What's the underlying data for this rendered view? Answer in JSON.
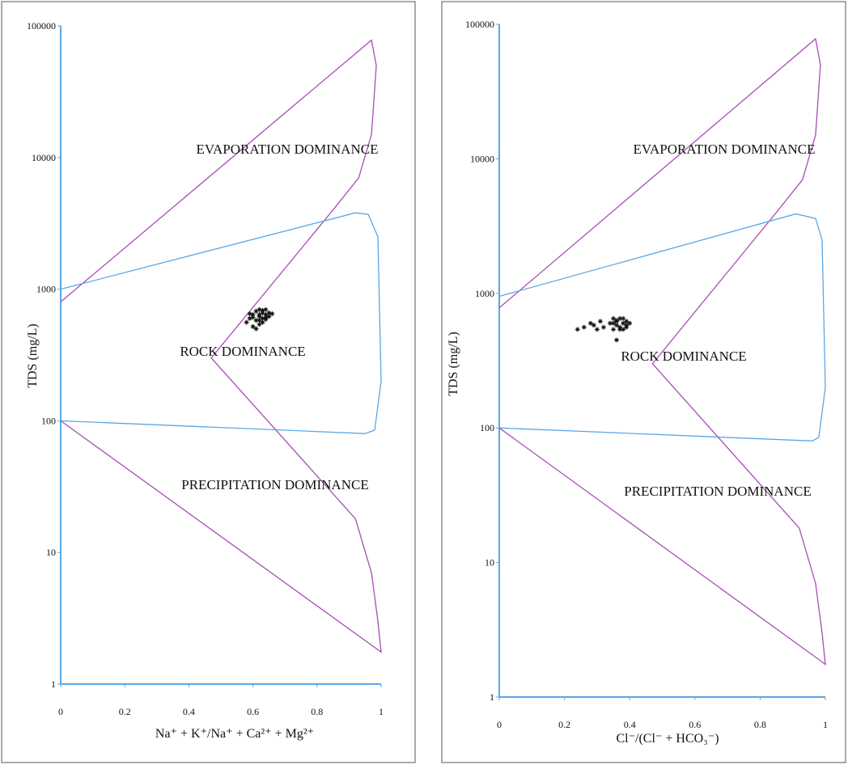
{
  "chart_data": [
    {
      "type": "scatter",
      "log_y": true,
      "y_label": "TDS (mg/L)",
      "x_label": "Na⁺ + K⁺/Na⁺ + Ca²⁺ + Mg²⁺",
      "annotations": [
        "EVAPORATION DOMINANCE",
        "ROCK DOMINANCE",
        "PRECIPITATION DOMINANCE"
      ],
      "xlim": [
        0,
        1
      ],
      "xticks": [
        0,
        0.2,
        0.4,
        0.6,
        0.8,
        1
      ],
      "ylim": [
        1,
        100000
      ],
      "yticks": [
        1,
        10,
        100,
        1000,
        10000,
        100000
      ],
      "axis_color": "#5aa7e6",
      "points": {
        "color": "#111111",
        "x": [
          0.58,
          0.59,
          0.6,
          0.6,
          0.61,
          0.61,
          0.62,
          0.62,
          0.62,
          0.63,
          0.63,
          0.63,
          0.64,
          0.64,
          0.64,
          0.65,
          0.65,
          0.66,
          0.6,
          0.61,
          0.62,
          0.63,
          0.59,
          0.62,
          0.64
        ],
        "values": [
          560,
          600,
          520,
          640,
          580,
          680,
          620,
          540,
          700,
          600,
          660,
          560,
          640,
          590,
          700,
          620,
          660,
          650,
          610,
          500,
          580,
          690,
          650,
          640,
          610
        ]
      },
      "boundaries": [
        {
          "color": "#a64db4",
          "x": [
            0,
            0.97,
            0.985,
            0.97,
            0.93,
            0.85,
            0.47,
            0.92,
            0.97,
            0.99,
            1,
            0
          ],
          "values": [
            800,
            78000,
            50000,
            15000,
            7000,
            4000,
            300,
            18,
            7,
            3,
            1.75,
            100
          ]
        },
        {
          "color": "#5aa7e6",
          "x": [
            0,
            0.92,
            0.96,
            0.99,
            1,
            0.98,
            0.95,
            0
          ],
          "values": [
            1000,
            3800,
            3700,
            2500,
            200,
            85,
            80,
            100
          ]
        }
      ]
    },
    {
      "type": "scatter",
      "log_y": true,
      "y_label": "TDS (mg/L)",
      "x_label": "Cl⁻/(Cl⁻ + HCO₃⁻)",
      "annotations": [
        "EVAPORATION DOMINANCE",
        "ROCK DOMINANCE",
        "PRECIPITATION DOMINANCE"
      ],
      "xlim": [
        0,
        1
      ],
      "xticks": [
        0,
        0.2,
        0.4,
        0.6,
        0.8,
        1
      ],
      "ylim": [
        1,
        100000
      ],
      "yticks": [
        1,
        10,
        100,
        1000,
        10000,
        100000
      ],
      "axis_color": "#5aa7e6",
      "points": {
        "color": "#111111",
        "x": [
          0.24,
          0.26,
          0.28,
          0.29,
          0.3,
          0.31,
          0.32,
          0.34,
          0.35,
          0.35,
          0.36,
          0.36,
          0.37,
          0.37,
          0.38,
          0.38,
          0.39,
          0.39,
          0.4,
          0.36,
          0.38,
          0.35,
          0.37,
          0.39,
          0.36
        ],
        "values": [
          540,
          560,
          600,
          580,
          540,
          620,
          560,
          600,
          540,
          650,
          580,
          620,
          560,
          650,
          600,
          540,
          620,
          580,
          600,
          450,
          650,
          600,
          540,
          560,
          630
        ]
      },
      "boundaries": [
        {
          "color": "#a64db4",
          "x": [
            0,
            0.97,
            0.985,
            0.97,
            0.93,
            0.85,
            0.47,
            0.92,
            0.97,
            0.99,
            1,
            0
          ],
          "values": [
            780,
            78000,
            50000,
            15000,
            7000,
            4000,
            300,
            18,
            7,
            3,
            1.75,
            100
          ]
        },
        {
          "color": "#5aa7e6",
          "x": [
            0,
            0.91,
            0.97,
            0.99,
            1,
            0.98,
            0.96,
            0
          ],
          "values": [
            950,
            3900,
            3600,
            2500,
            200,
            85,
            80,
            100
          ]
        }
      ]
    }
  ]
}
